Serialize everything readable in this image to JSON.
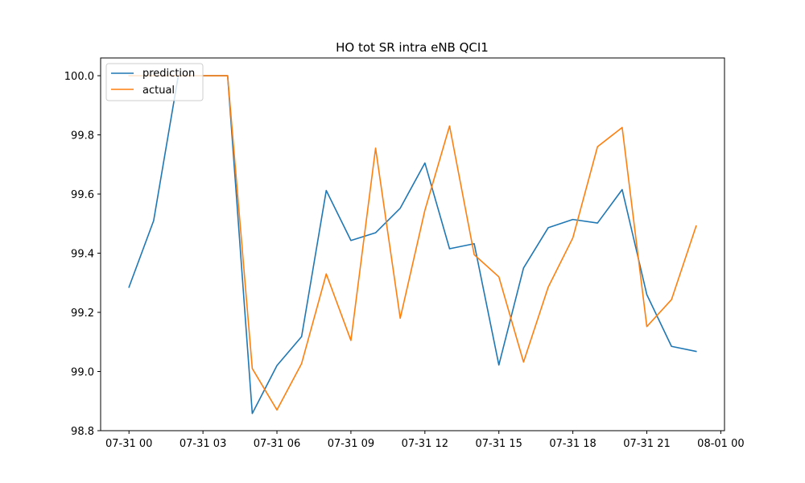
{
  "chart_data": {
    "type": "line",
    "title": "HO tot SR intra eNB QCI1",
    "xlabel": "",
    "ylabel": "",
    "x_unit": "hour",
    "x": [
      0,
      1,
      2,
      3,
      4,
      5,
      6,
      7,
      8,
      9,
      10,
      11,
      12,
      13,
      14,
      15,
      16,
      17,
      18,
      19,
      20,
      21,
      22,
      23
    ],
    "xlim": [
      -1.15,
      24.15
    ],
    "ylim": [
      98.8,
      100.06
    ],
    "x_ticks": [
      0,
      3,
      6,
      9,
      12,
      15,
      18,
      21,
      24
    ],
    "x_tick_labels": [
      "07-31 00",
      "07-31 03",
      "07-31 06",
      "07-31 09",
      "07-31 12",
      "07-31 15",
      "07-31 18",
      "07-31 21",
      "08-01 00"
    ],
    "y_ticks": [
      98.8,
      99.0,
      99.2,
      99.4,
      99.6,
      99.8,
      100.0
    ],
    "y_tick_labels": [
      "98.8",
      "99.0",
      "99.2",
      "99.4",
      "99.6",
      "99.8",
      "100.0"
    ],
    "grid": false,
    "legend_position": "top-left",
    "series": [
      {
        "name": "prediction",
        "color": "#1f77b4",
        "values": [
          99.285,
          99.51,
          100.0,
          100.0,
          100.0,
          98.858,
          99.02,
          99.118,
          99.612,
          99.443,
          99.469,
          99.552,
          99.705,
          99.415,
          99.432,
          99.022,
          99.35,
          99.486,
          99.514,
          99.502,
          99.615,
          99.26,
          99.085,
          99.068
        ]
      },
      {
        "name": "actual",
        "color": "#ff7f0e",
        "values": [
          100.0,
          100.0,
          100.0,
          100.0,
          100.0,
          99.01,
          98.87,
          99.027,
          99.33,
          99.105,
          99.755,
          99.18,
          99.545,
          99.83,
          99.395,
          99.32,
          99.032,
          99.285,
          99.452,
          99.76,
          99.825,
          99.152,
          99.243,
          99.492
        ]
      }
    ]
  }
}
